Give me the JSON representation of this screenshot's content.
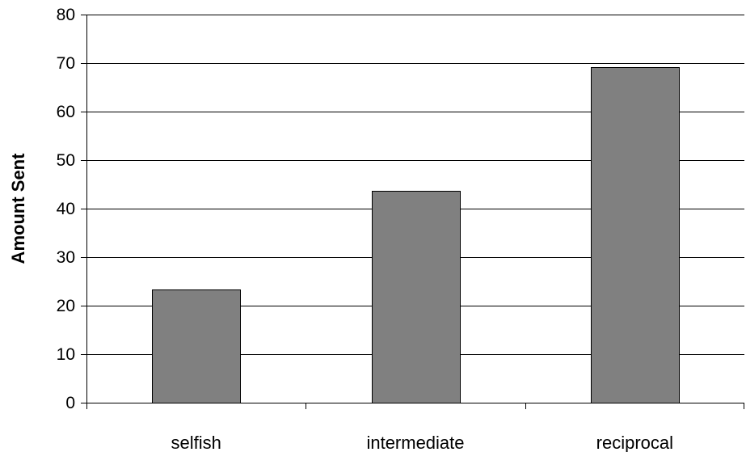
{
  "chart_data": {
    "type": "bar",
    "categories": [
      "selfish",
      "intermediate",
      "reciprocal"
    ],
    "values": [
      23.3,
      43.6,
      69.2
    ],
    "title": "",
    "xlabel": "",
    "ylabel": "Amount Sent",
    "ylim": [
      0,
      80
    ],
    "yticks": [
      "0",
      "10",
      "20",
      "30",
      "40",
      "50",
      "60",
      "70",
      "80"
    ],
    "grid": true,
    "legend": "none",
    "colors": {
      "bar_fill": "#808080",
      "bar_stroke": "#000000",
      "grid": "#000000",
      "axis": "#000000"
    }
  }
}
